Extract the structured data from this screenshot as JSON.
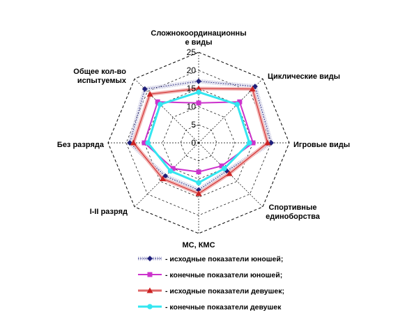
{
  "chart_data": {
    "type": "radar",
    "title": "",
    "categories": [
      [
        "Сложнокоординационны",
        "е виды"
      ],
      [
        "Циклические виды"
      ],
      [
        "Игровые виды"
      ],
      [
        "Спортивные",
        "единоборства"
      ],
      [
        "МС, КМС"
      ],
      [
        "I-II разряд"
      ],
      [
        "Без разряда"
      ],
      [
        "Общее кол-во",
        "испытуемых"
      ]
    ],
    "rlim": [
      0,
      25
    ],
    "ticks": [
      "0",
      "5",
      "10",
      "15",
      "20",
      "25"
    ],
    "tick_values": [
      0,
      5,
      10,
      15,
      20,
      25
    ],
    "series": [
      {
        "name": "исходные показатели юношей;",
        "values": [
          17,
          22,
          20,
          11,
          13,
          13,
          19,
          21
        ],
        "color": "#1f1f7a",
        "marker": "diamond",
        "style": "dotted-band"
      },
      {
        "name": "конечные показатели юношей;",
        "values": [
          11,
          16,
          15,
          9,
          8,
          10,
          15,
          16
        ],
        "color": "#cc33cc",
        "marker": "square",
        "style": "solid"
      },
      {
        "name": "исходные показатели девушек;",
        "values": [
          15,
          21,
          19,
          12,
          14,
          14,
          18,
          19
        ],
        "color": "#cc2222",
        "marker": "triangle",
        "style": "red-band"
      },
      {
        "name": "конечные показатели девушек",
        "values": [
          14,
          15,
          14,
          10,
          11,
          11,
          14,
          15
        ],
        "color": "#33e6f0",
        "marker": "circle",
        "style": "solid"
      }
    ]
  }
}
